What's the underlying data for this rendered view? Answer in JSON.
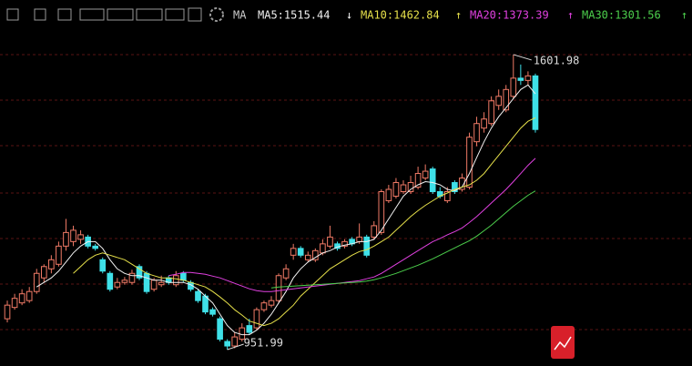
{
  "chart_data": {
    "type": "candlestick",
    "indicator": "MA",
    "up_color": "#f07a66",
    "down_color": "#3fe0e8",
    "ylim": [
      930,
      1662
    ],
    "open": [
      1020,
      1045,
      1055,
      1060,
      1080,
      1110,
      1130,
      1140,
      1180,
      1190,
      1195,
      1200,
      1180,
      1150,
      1120,
      1090,
      1100,
      1100,
      1135,
      1120,
      1085,
      1095,
      1110,
      1095,
      1120,
      1100,
      1080,
      1070,
      1040,
      1020,
      970,
      960,
      975,
      1005,
      1000,
      1040,
      1050,
      1060,
      1110,
      1160,
      1175,
      1150,
      1150,
      1165,
      1180,
      1185,
      1180,
      1195,
      1190,
      1200,
      1200,
      1210,
      1280,
      1290,
      1300,
      1300,
      1310,
      1330,
      1350,
      1300,
      1280,
      1320,
      1305,
      1310,
      1410,
      1440,
      1450,
      1490,
      1480,
      1510,
      1550,
      1545,
      1555
    ],
    "high": [
      1060,
      1075,
      1085,
      1090,
      1130,
      1140,
      1160,
      1190,
      1240,
      1225,
      1215,
      1205,
      1185,
      1155,
      1125,
      1110,
      1112,
      1128,
      1140,
      1125,
      1110,
      1115,
      1115,
      1125,
      1125,
      1105,
      1085,
      1075,
      1045,
      1025,
      975,
      990,
      1010,
      1020,
      1045,
      1060,
      1070,
      1120,
      1140,
      1185,
      1180,
      1168,
      1175,
      1195,
      1225,
      1190,
      1195,
      1200,
      1230,
      1205,
      1235,
      1305,
      1315,
      1330,
      1325,
      1335,
      1355,
      1360,
      1355,
      1310,
      1310,
      1325,
      1340,
      1430,
      1465,
      1475,
      1510,
      1525,
      1535,
      1601.98,
      1580,
      1565,
      1560
    ],
    "low": [
      1012,
      1040,
      1050,
      1055,
      1075,
      1100,
      1120,
      1135,
      1170,
      1180,
      1185,
      1175,
      1170,
      1120,
      1080,
      1085,
      1095,
      1095,
      1105,
      1075,
      1080,
      1090,
      1095,
      1090,
      1100,
      1080,
      1055,
      1030,
      1025,
      970,
      951.99,
      955,
      970,
      985,
      995,
      1035,
      1045,
      1055,
      1105,
      1150,
      1155,
      1145,
      1145,
      1160,
      1175,
      1170,
      1175,
      1180,
      1185,
      1155,
      1195,
      1205,
      1275,
      1285,
      1295,
      1295,
      1305,
      1325,
      1295,
      1285,
      1275,
      1295,
      1300,
      1305,
      1400,
      1430,
      1445,
      1480,
      1475,
      1505,
      1535,
      1535,
      1430
    ],
    "close": [
      1050,
      1065,
      1075,
      1080,
      1120,
      1135,
      1150,
      1180,
      1210,
      1215,
      1205,
      1180,
      1175,
      1125,
      1085,
      1100,
      1105,
      1120,
      1110,
      1080,
      1105,
      1100,
      1100,
      1115,
      1105,
      1085,
      1060,
      1035,
      1030,
      975,
      960,
      980,
      1000,
      990,
      1040,
      1055,
      1060,
      1115,
      1130,
      1175,
      1160,
      1160,
      1170,
      1185,
      1200,
      1175,
      1190,
      1185,
      1200,
      1160,
      1225,
      1300,
      1305,
      1320,
      1315,
      1320,
      1340,
      1345,
      1300,
      1290,
      1300,
      1300,
      1330,
      1420,
      1450,
      1460,
      1500,
      1510,
      1525,
      1550,
      1545,
      1555,
      1437
    ],
    "series": [
      {
        "name": "MA5:1515.44",
        "arrow": "↓",
        "color": "#f2f2f2",
        "values": [
          null,
          null,
          null,
          null,
          1090,
          1100,
          1110,
          1125,
          1145,
          1165,
          1180,
          1190,
          1190,
          1175,
          1150,
          1130,
          1120,
          1115,
          1115,
          1110,
          1105,
          1105,
          1100,
          1100,
          1100,
          1095,
          1085,
          1070,
          1055,
          1030,
          1005,
          990,
          985,
          985,
          995,
          1010,
          1030,
          1055,
          1080,
          1110,
          1130,
          1145,
          1155,
          1165,
          1170,
          1178,
          1182,
          1185,
          1190,
          1190,
          1195,
          1215,
          1240,
          1265,
          1290,
          1305,
          1315,
          1322,
          1320,
          1315,
          1305,
          1302,
          1310,
          1340,
          1375,
          1410,
          1440,
          1465,
          1485,
          1505,
          1525,
          1535,
          1515.44
        ]
      },
      {
        "name": "MA10:1462.84",
        "arrow": "↑",
        "color": "#e6e04a",
        "values": [
          null,
          null,
          null,
          null,
          null,
          null,
          null,
          null,
          null,
          1120,
          1135,
          1150,
          1160,
          1165,
          1160,
          1155,
          1150,
          1140,
          1130,
          1120,
          1115,
          1110,
          1110,
          1108,
          1105,
          1100,
          1095,
          1090,
          1080,
          1068,
          1055,
          1040,
          1028,
          1015,
          1010,
          1005,
          1010,
          1020,
          1035,
          1050,
          1070,
          1085,
          1100,
          1115,
          1130,
          1140,
          1150,
          1160,
          1168,
          1172,
          1180,
          1190,
          1200,
          1215,
          1230,
          1245,
          1258,
          1270,
          1280,
          1290,
          1297,
          1305,
          1310,
          1315,
          1325,
          1340,
          1360,
          1380,
          1400,
          1420,
          1440,
          1455,
          1462.84
        ]
      },
      {
        "name": "MA20:1373.39",
        "arrow": "↑",
        "color": "#e040e0",
        "values": [
          null,
          null,
          null,
          null,
          null,
          null,
          null,
          null,
          null,
          null,
          null,
          null,
          null,
          null,
          null,
          null,
          null,
          null,
          null,
          null,
          null,
          null,
          1115,
          1118,
          1122,
          1122,
          1120,
          1118,
          1114,
          1110,
          1104,
          1098,
          1092,
          1086,
          1082,
          1080,
          1080,
          1082,
          1084,
          1086,
          1088,
          1090,
          1092,
          1094,
          1096,
          1098,
          1100,
          1102,
          1104,
          1108,
          1112,
          1120,
          1130,
          1140,
          1150,
          1160,
          1170,
          1180,
          1190,
          1197,
          1205,
          1212,
          1220,
          1232,
          1245,
          1260,
          1275,
          1290,
          1305,
          1322,
          1340,
          1358,
          1373.39
        ]
      },
      {
        "name": "MA30:1301.56",
        "arrow": "↑",
        "color": "#4ccf4c",
        "values": [
          null,
          null,
          null,
          null,
          null,
          null,
          null,
          null,
          null,
          null,
          null,
          null,
          null,
          null,
          null,
          null,
          null,
          null,
          null,
          null,
          null,
          null,
          null,
          null,
          null,
          null,
          null,
          null,
          null,
          null,
          null,
          null,
          null,
          null,
          null,
          null,
          1088,
          1090,
          1091,
          1092,
          1093,
          1094,
          1095,
          1096,
          1097,
          1098,
          1099,
          1100,
          1101,
          1103,
          1106,
          1110,
          1115,
          1120,
          1126,
          1132,
          1138,
          1145,
          1152,
          1160,
          1168,
          1176,
          1184,
          1192,
          1202,
          1214,
          1226,
          1240,
          1254,
          1268,
          1280,
          1292,
          1301.56
        ]
      }
    ],
    "annotations": [
      "1601.98",
      "951.99"
    ]
  }
}
